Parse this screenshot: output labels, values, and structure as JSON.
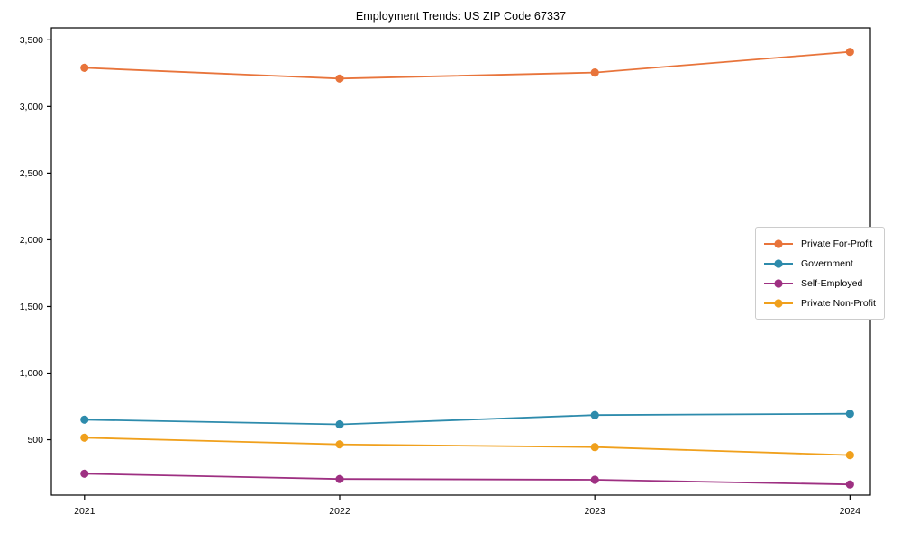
{
  "page": {
    "background_color": "#ffffff"
  },
  "chart_data": {
    "type": "line",
    "title": "Employment Trends: US ZIP Code 67337",
    "xlabel": "",
    "ylabel": "",
    "categories": [
      "2021",
      "2022",
      "2023",
      "2024"
    ],
    "x": [
      2021,
      2022,
      2023,
      2024
    ],
    "series": [
      {
        "name": "Private For-Profit",
        "color": "#e8743b",
        "values": [
          3290,
          3210,
          3255,
          3410
        ]
      },
      {
        "name": "Government",
        "color": "#2d8bac",
        "values": [
          650,
          615,
          685,
          695
        ]
      },
      {
        "name": "Self-Employed",
        "color": "#9e3082",
        "values": [
          245,
          205,
          200,
          165
        ]
      },
      {
        "name": "Private Non-Profit",
        "color": "#f0a01c",
        "values": [
          515,
          465,
          445,
          385
        ]
      }
    ],
    "xlim": [
      2020.87,
      2024.08
    ],
    "ylim": [
      85,
      3590
    ],
    "y_ticks": [
      {
        "value": 500,
        "label": "500"
      },
      {
        "value": 1000,
        "label": "1,000"
      },
      {
        "value": 1500,
        "label": "1,500"
      },
      {
        "value": 2000,
        "label": "2,000"
      },
      {
        "value": 2500,
        "label": "2,500"
      },
      {
        "value": 3000,
        "label": "3,000"
      },
      {
        "value": 3500,
        "label": "3,500"
      }
    ],
    "x_ticks": [
      {
        "value": 2021,
        "label": "2021"
      },
      {
        "value": 2022,
        "label": "2022"
      },
      {
        "value": 2023,
        "label": "2023"
      },
      {
        "value": 2024,
        "label": "2024"
      }
    ],
    "grid": false,
    "axis_color": "#000000",
    "tick_label_color": "#000000",
    "legend": {
      "position": "right-middle",
      "border_color": "#cccccc",
      "background": "#ffffff"
    }
  }
}
